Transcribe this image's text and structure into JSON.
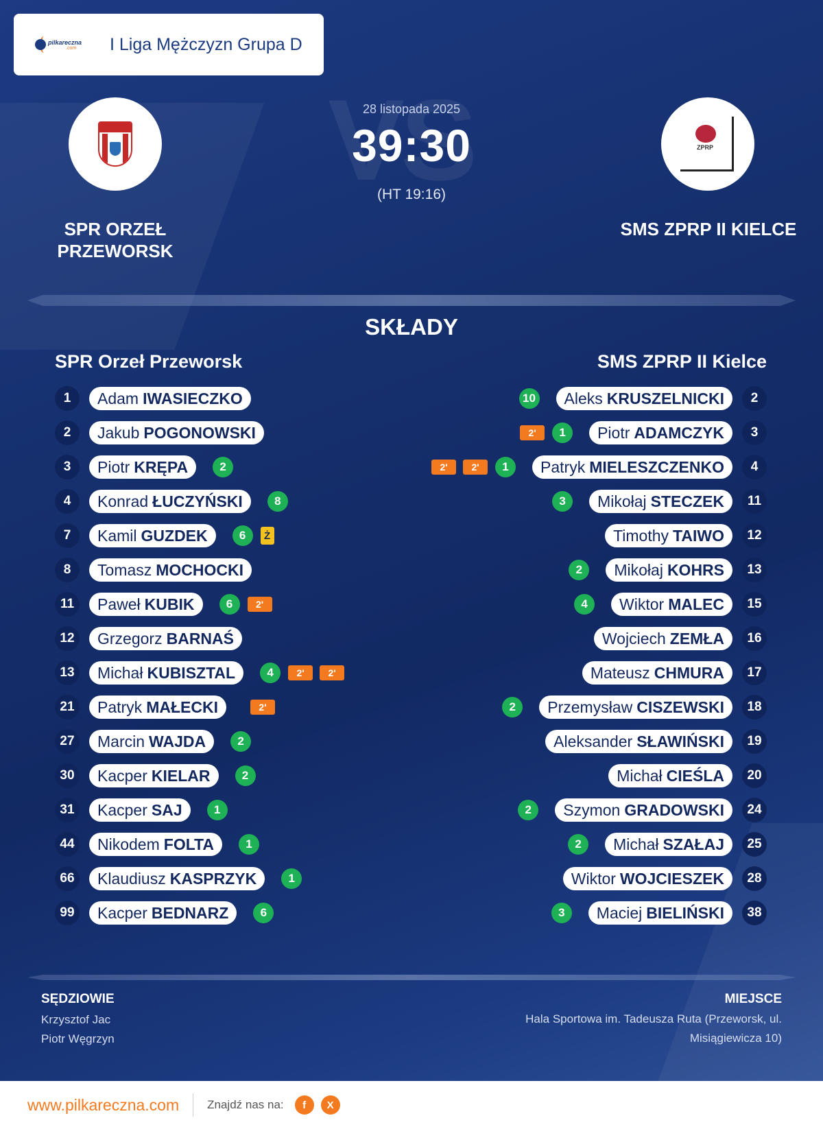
{
  "league": {
    "logo_text": "pilkareczna",
    "logo_sub": ".com",
    "title": "I Liga Mężczyzn Grupa D"
  },
  "match": {
    "vs_text": "VS",
    "date": "28 listopada 2025",
    "score": "39:30",
    "halftime": "(HT 19:16)"
  },
  "home": {
    "name_line1": "SPR ORZEŁ",
    "name_line2": "PRZEWORSK",
    "squad_title": "SPR Orzeł Przeworsk",
    "crest_text": "ORZEŁ",
    "players": [
      {
        "num": "1",
        "first": "Adam",
        "last": "IWASIECZKO",
        "goals": "",
        "cards": []
      },
      {
        "num": "2",
        "first": "Jakub",
        "last": "POGONOWSKI",
        "goals": "",
        "cards": []
      },
      {
        "num": "3",
        "first": "Piotr",
        "last": "KRĘPA",
        "goals": "2",
        "cards": []
      },
      {
        "num": "4",
        "first": "Konrad",
        "last": "ŁUCZYŃSKI",
        "goals": "8",
        "cards": []
      },
      {
        "num": "7",
        "first": "Kamil",
        "last": "GUZDEK",
        "goals": "6",
        "cards": [
          "Ż"
        ]
      },
      {
        "num": "8",
        "first": "Tomasz",
        "last": "MOCHOCKI",
        "goals": "",
        "cards": []
      },
      {
        "num": "11",
        "first": "Paweł",
        "last": "KUBIK",
        "goals": "6",
        "cards": [
          "2'"
        ]
      },
      {
        "num": "12",
        "first": "Grzegorz",
        "last": "BARNAŚ",
        "goals": "",
        "cards": []
      },
      {
        "num": "13",
        "first": "Michał",
        "last": "KUBISZTAL",
        "goals": "4",
        "cards": [
          "2'",
          "2'"
        ]
      },
      {
        "num": "21",
        "first": "Patryk",
        "last": "MAŁECKI",
        "goals": "",
        "cards": [
          "2'"
        ]
      },
      {
        "num": "27",
        "first": "Marcin",
        "last": "WAJDA",
        "goals": "2",
        "cards": []
      },
      {
        "num": "30",
        "first": "Kacper",
        "last": "KIELAR",
        "goals": "2",
        "cards": []
      },
      {
        "num": "31",
        "first": "Kacper",
        "last": "SAJ",
        "goals": "1",
        "cards": []
      },
      {
        "num": "44",
        "first": "Nikodem",
        "last": "FOLTA",
        "goals": "1",
        "cards": []
      },
      {
        "num": "66",
        "first": "Klaudiusz",
        "last": "KASPRZYK",
        "goals": "1",
        "cards": []
      },
      {
        "num": "99",
        "first": "Kacper",
        "last": "BEDNARZ",
        "goals": "6",
        "cards": []
      }
    ]
  },
  "away": {
    "name": "SMS ZPRP II KIELCE",
    "squad_title": "SMS ZPRP II Kielce",
    "crest_text": "ZPRP",
    "players": [
      {
        "num": "2",
        "first": "Aleks",
        "last": "KRUSZELNICKI",
        "goals": "10",
        "cards": []
      },
      {
        "num": "3",
        "first": "Piotr",
        "last": "ADAMCZYK",
        "goals": "1",
        "cards": [
          "2'"
        ]
      },
      {
        "num": "4",
        "first": "Patryk",
        "last": "MIELESZCZENKO",
        "goals": "1",
        "cards": [
          "2'",
          "2'"
        ]
      },
      {
        "num": "11",
        "first": "Mikołaj",
        "last": "STECZEK",
        "goals": "3",
        "cards": []
      },
      {
        "num": "12",
        "first": "Timothy",
        "last": "TAIWO",
        "goals": "",
        "cards": []
      },
      {
        "num": "13",
        "first": "Mikołaj",
        "last": "KOHRS",
        "goals": "2",
        "cards": []
      },
      {
        "num": "15",
        "first": "Wiktor",
        "last": "MALEC",
        "goals": "4",
        "cards": []
      },
      {
        "num": "16",
        "first": "Wojciech",
        "last": "ZEMŁA",
        "goals": "",
        "cards": []
      },
      {
        "num": "17",
        "first": "Mateusz",
        "last": "CHMURA",
        "goals": "",
        "cards": []
      },
      {
        "num": "18",
        "first": "Przemysław",
        "last": "CISZEWSKI",
        "goals": "2",
        "cards": []
      },
      {
        "num": "19",
        "first": "Aleksander",
        "last": "SŁAWIŃSKI",
        "goals": "",
        "cards": []
      },
      {
        "num": "20",
        "first": "Michał",
        "last": "CIEŚLA",
        "goals": "",
        "cards": []
      },
      {
        "num": "24",
        "first": "Szymon",
        "last": "GRADOWSKI",
        "goals": "2",
        "cards": []
      },
      {
        "num": "25",
        "first": "Michał",
        "last": "SZAŁAJ",
        "goals": "2",
        "cards": []
      },
      {
        "num": "28",
        "first": "Wiktor",
        "last": "WOJCIESZEK",
        "goals": "",
        "cards": []
      },
      {
        "num": "38",
        "first": "Maciej",
        "last": "BIELIŃSKI",
        "goals": "3",
        "cards": []
      }
    ]
  },
  "section": {
    "title": "SKŁADY"
  },
  "referees": {
    "label": "SĘDZIOWIE",
    "names": [
      "Krzysztof Jac",
      "Piotr Węgrzyn"
    ]
  },
  "venue": {
    "label": "MIEJSCE",
    "text": "Hala Sportowa im. Tadeusza Ruta (Przeworsk, ul. Misiągiewicza 10)"
  },
  "footer": {
    "site": "www.pilkareczna.com",
    "find_us": "Znajdź nas na:",
    "social": [
      {
        "icon": "facebook-icon",
        "glyph": "f"
      },
      {
        "icon": "x-icon",
        "glyph": "X"
      }
    ]
  },
  "colors": {
    "background": "#13285f",
    "accent_orange": "#f47a20",
    "goal_green": "#1fb155",
    "yellow_card": "#f4c21f",
    "number_badge": "#0f245b"
  }
}
